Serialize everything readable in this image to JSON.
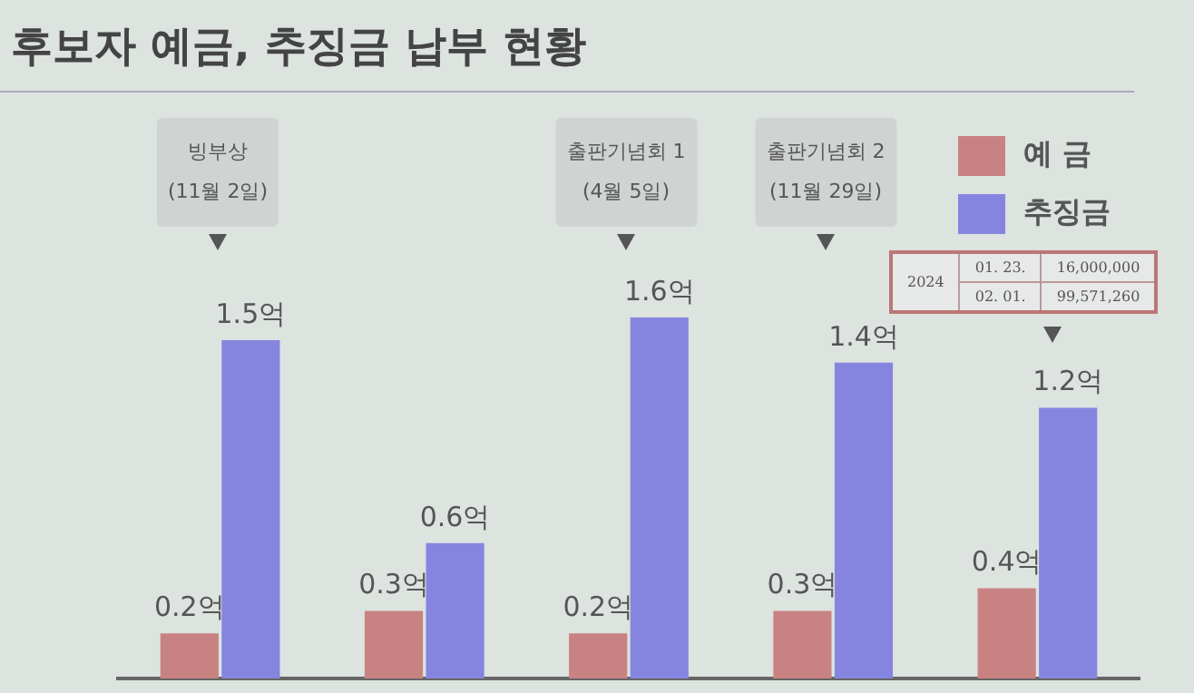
{
  "chart_data": {
    "type": "bar",
    "title": "후보자 예금, 추징금 납부 현황",
    "categories": [
      null,
      null,
      null,
      null,
      null
    ],
    "series": [
      {
        "name": "예 금",
        "color": "#c98282",
        "values": [
          0.2,
          0.3,
          0.2,
          0.3,
          0.4
        ],
        "value_labels": [
          "0.2억",
          "0.3억",
          "0.2억",
          "0.3억",
          "0.4억"
        ]
      },
      {
        "name": "추징금",
        "color": "#8585e0",
        "values": [
          1.5,
          0.6,
          1.6,
          1.4,
          1.2
        ],
        "value_labels": [
          "1.5억",
          "0.6억",
          "1.6억",
          "1.4억",
          "1.2억"
        ]
      }
    ],
    "legend": "top right",
    "annotations": [
      "빙부상\n(11월 2일)",
      "출판기념회 1\n(4월 5일)",
      "출판기념회 2\n(11월 29일)",
      "2024",
      "01. 23.",
      "16,000,000",
      "02. 01.",
      "99,571,260"
    ]
  }
}
